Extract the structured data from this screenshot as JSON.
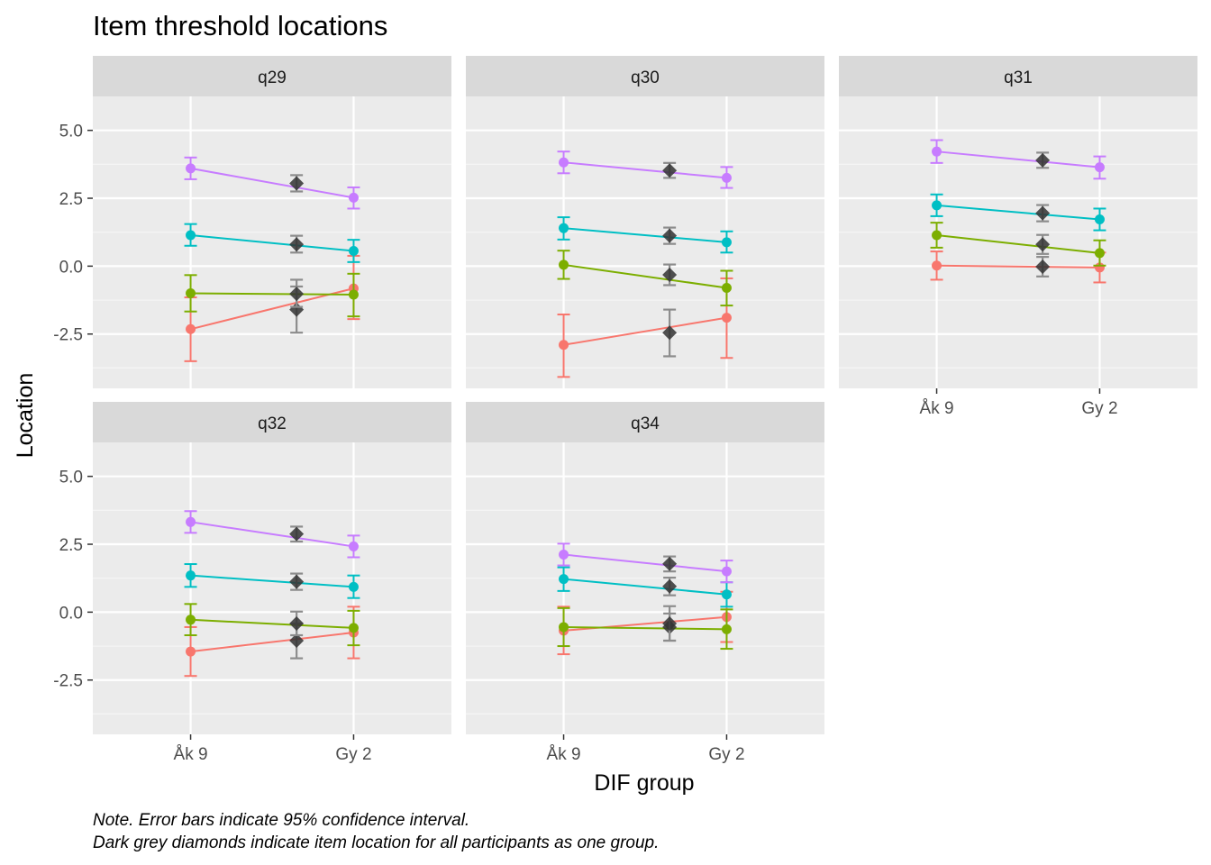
{
  "chart_data": {
    "type": "line",
    "title": "Item threshold locations",
    "xlabel": "DIF group",
    "ylabel": "Location",
    "x_tick_labels": [
      "Åk 9",
      "Gy 2"
    ],
    "y_tick_labels": [
      "5.0",
      "2.5",
      "0.0",
      "-2.5"
    ],
    "y_ticks": [
      5.0,
      2.5,
      0.0,
      -2.5
    ],
    "ylim": [
      -4.5,
      6.25
    ],
    "x_positions": {
      "Åk 9": 1,
      "all": 1.65,
      "Gy 2": 2
    },
    "xlim": [
      0.4,
      2.6
    ],
    "grid": true,
    "captions": [
      "Note. Error bars indicate 95% confidence interval.",
      "Dark grey diamonds indicate item location for all participants as one group."
    ],
    "threshold_colors": [
      "#F8766D",
      "#7CAE00",
      "#00BFC4",
      "#C77CFF"
    ],
    "overall_color": "#333333",
    "panels": [
      {
        "label": "q29",
        "thresholds": [
          {
            "groups": [
              {
                "y": -2.32,
                "lo": -3.5,
                "hi": -1.15
              },
              {
                "y": -0.82,
                "lo": -1.95,
                "hi": 0.38
              }
            ]
          },
          {
            "groups": [
              {
                "y": -1.0,
                "lo": -1.67,
                "hi": -0.33
              },
              {
                "y": -1.05,
                "lo": -1.85,
                "hi": -0.28
              }
            ]
          },
          {
            "groups": [
              {
                "y": 1.14,
                "lo": 0.75,
                "hi": 1.55
              },
              {
                "y": 0.56,
                "lo": 0.15,
                "hi": 0.97
              }
            ]
          },
          {
            "groups": [
              {
                "y": 3.6,
                "lo": 3.2,
                "hi": 4.0
              },
              {
                "y": 2.52,
                "lo": 2.12,
                "hi": 2.9
              }
            ]
          }
        ],
        "overall": [
          {
            "y": -1.6,
            "lo": -2.45,
            "hi": -0.75
          },
          {
            "y": -1.02,
            "lo": -1.5,
            "hi": -0.5
          },
          {
            "y": 0.8,
            "lo": 0.5,
            "hi": 1.12
          },
          {
            "y": 3.05,
            "lo": 2.75,
            "hi": 3.35
          }
        ]
      },
      {
        "label": "q30",
        "thresholds": [
          {
            "groups": [
              {
                "y": -2.9,
                "lo": -4.08,
                "hi": -1.78
              },
              {
                "y": -1.9,
                "lo": -3.38,
                "hi": -0.45
              }
            ]
          },
          {
            "groups": [
              {
                "y": 0.05,
                "lo": -0.47,
                "hi": 0.57
              },
              {
                "y": -0.8,
                "lo": -1.45,
                "hi": -0.17
              }
            ]
          },
          {
            "groups": [
              {
                "y": 1.4,
                "lo": 0.98,
                "hi": 1.8
              },
              {
                "y": 0.88,
                "lo": 0.5,
                "hi": 1.28
              }
            ]
          },
          {
            "groups": [
              {
                "y": 3.82,
                "lo": 3.42,
                "hi": 4.22
              },
              {
                "y": 3.25,
                "lo": 2.88,
                "hi": 3.65
              }
            ]
          }
        ],
        "overall": [
          {
            "y": -2.45,
            "lo": -3.32,
            "hi": -1.6
          },
          {
            "y": -0.32,
            "lo": -0.7,
            "hi": 0.06
          },
          {
            "y": 1.12,
            "lo": 0.82,
            "hi": 1.42
          },
          {
            "y": 3.52,
            "lo": 3.25,
            "hi": 3.8
          }
        ]
      },
      {
        "label": "q31",
        "thresholds": [
          {
            "groups": [
              {
                "y": 0.02,
                "lo": -0.5,
                "hi": 0.54
              },
              {
                "y": -0.05,
                "lo": -0.6,
                "hi": 0.5
              }
            ]
          },
          {
            "groups": [
              {
                "y": 1.14,
                "lo": 0.68,
                "hi": 1.6
              },
              {
                "y": 0.48,
                "lo": 0.02,
                "hi": 0.95
              }
            ]
          },
          {
            "groups": [
              {
                "y": 2.24,
                "lo": 1.84,
                "hi": 2.64
              },
              {
                "y": 1.72,
                "lo": 1.32,
                "hi": 2.12
              }
            ]
          },
          {
            "groups": [
              {
                "y": 4.22,
                "lo": 3.8,
                "hi": 4.64
              },
              {
                "y": 3.64,
                "lo": 3.22,
                "hi": 4.04
              }
            ]
          }
        ],
        "overall": [
          {
            "y": -0.02,
            "lo": -0.38,
            "hi": 0.34
          },
          {
            "y": 0.8,
            "lo": 0.45,
            "hi": 1.15
          },
          {
            "y": 1.95,
            "lo": 1.65,
            "hi": 2.25
          },
          {
            "y": 3.9,
            "lo": 3.62,
            "hi": 4.18
          }
        ]
      },
      {
        "label": "q32",
        "thresholds": [
          {
            "groups": [
              {
                "y": -1.45,
                "lo": -2.35,
                "hi": -0.55
              },
              {
                "y": -0.75,
                "lo": -1.7,
                "hi": 0.2
              }
            ]
          },
          {
            "groups": [
              {
                "y": -0.28,
                "lo": -0.85,
                "hi": 0.3
              },
              {
                "y": -0.58,
                "lo": -1.22,
                "hi": 0.05
              }
            ]
          },
          {
            "groups": [
              {
                "y": 1.35,
                "lo": 0.93,
                "hi": 1.77
              },
              {
                "y": 0.93,
                "lo": 0.52,
                "hi": 1.35
              }
            ]
          },
          {
            "groups": [
              {
                "y": 3.32,
                "lo": 2.92,
                "hi": 3.72
              },
              {
                "y": 2.42,
                "lo": 2.02,
                "hi": 2.82
              }
            ]
          }
        ],
        "overall": [
          {
            "y": -1.05,
            "lo": -1.7,
            "hi": -0.42
          },
          {
            "y": -0.42,
            "lo": -0.85,
            "hi": 0.02
          },
          {
            "y": 1.12,
            "lo": 0.82,
            "hi": 1.42
          },
          {
            "y": 2.88,
            "lo": 2.6,
            "hi": 3.15
          }
        ]
      },
      {
        "label": "q34",
        "thresholds": [
          {
            "groups": [
              {
                "y": -0.68,
                "lo": -1.55,
                "hi": 0.2
              },
              {
                "y": -0.18,
                "lo": -1.1,
                "hi": 0.75
              }
            ]
          },
          {
            "groups": [
              {
                "y": -0.55,
                "lo": -1.25,
                "hi": 0.15
              },
              {
                "y": -0.63,
                "lo": -1.35,
                "hi": 0.1
              }
            ]
          },
          {
            "groups": [
              {
                "y": 1.22,
                "lo": 0.78,
                "hi": 1.65
              },
              {
                "y": 0.65,
                "lo": 0.2,
                "hi": 1.1
              }
            ]
          },
          {
            "groups": [
              {
                "y": 2.12,
                "lo": 1.72,
                "hi": 2.52
              },
              {
                "y": 1.5,
                "lo": 1.1,
                "hi": 1.9
              }
            ]
          }
        ],
        "overall": [
          {
            "y": -0.55,
            "lo": -1.05,
            "hi": -0.05
          },
          {
            "y": -0.42,
            "lo": -1.05,
            "hi": 0.22
          },
          {
            "y": 0.95,
            "lo": 0.62,
            "hi": 1.27
          },
          {
            "y": 1.78,
            "lo": 1.5,
            "hi": 2.05
          }
        ]
      }
    ]
  }
}
